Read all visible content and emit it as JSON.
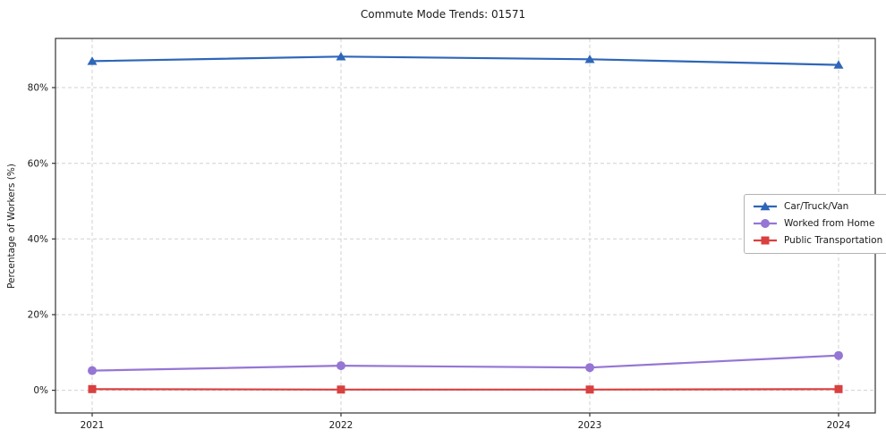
{
  "chart_data": {
    "type": "line",
    "title": "Commute Mode Trends: 01571",
    "xlabel": "",
    "ylabel": "Percentage of Workers (%)",
    "categories": [
      "2021",
      "2022",
      "2023",
      "2024"
    ],
    "series": [
      {
        "name": "Car/Truck/Van",
        "color": "#2e66b8",
        "marker": "triangle",
        "values": [
          87.0,
          88.2,
          87.5,
          86.0
        ]
      },
      {
        "name": "Worked from Home",
        "color": "#9576d4",
        "marker": "circle",
        "values": [
          5.2,
          6.5,
          6.0,
          9.2
        ]
      },
      {
        "name": "Public Transportation",
        "color": "#d94040",
        "marker": "square",
        "values": [
          0.3,
          0.2,
          0.2,
          0.3
        ]
      }
    ],
    "yticks": [
      0,
      20,
      40,
      60,
      80
    ],
    "ytick_labels": [
      "0%",
      "20%",
      "40%",
      "60%",
      "80%"
    ],
    "ylim": [
      -6,
      93
    ],
    "grid": "dashed",
    "grid_color": "#d0d0d0",
    "axis_color": "#333333",
    "legend_position": "center right"
  }
}
